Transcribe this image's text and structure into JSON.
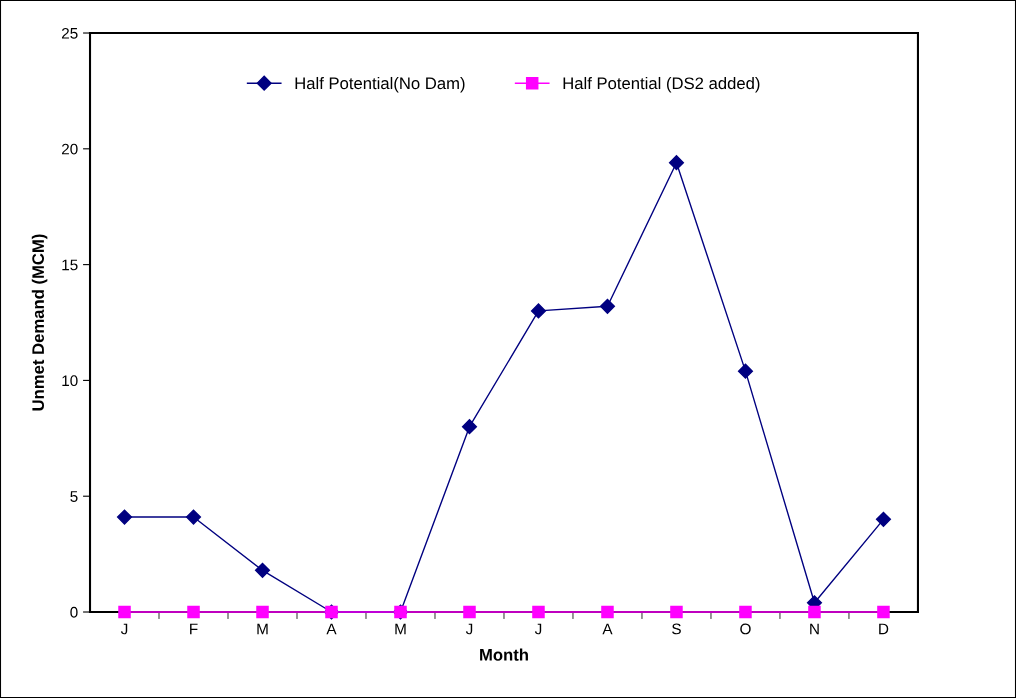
{
  "chart_data": {
    "type": "line",
    "xlabel": "Month",
    "ylabel": "Unmet Demand (MCM)",
    "categories": [
      "J",
      "F",
      "M",
      "A",
      "M",
      "J",
      "J",
      "A",
      "S",
      "O",
      "N",
      "D"
    ],
    "series": [
      {
        "name": "Half Potential(No Dam)",
        "color": "#000080",
        "marker": "diamond",
        "values": [
          4.1,
          4.1,
          1.8,
          0,
          0,
          8.0,
          13.0,
          13.2,
          19.4,
          10.4,
          0.4,
          4.0
        ]
      },
      {
        "name": "Half Potential (DS2 added)",
        "color": "#ff00ff",
        "marker": "square",
        "values": [
          0,
          0,
          0,
          0,
          0,
          0,
          0,
          0,
          0,
          0,
          0,
          0
        ]
      }
    ],
    "ylim": [
      0,
      25
    ],
    "yticks": [
      0,
      5,
      10,
      15,
      20,
      25
    ],
    "grid": false,
    "legend": "top",
    "line_style": "solid"
  }
}
